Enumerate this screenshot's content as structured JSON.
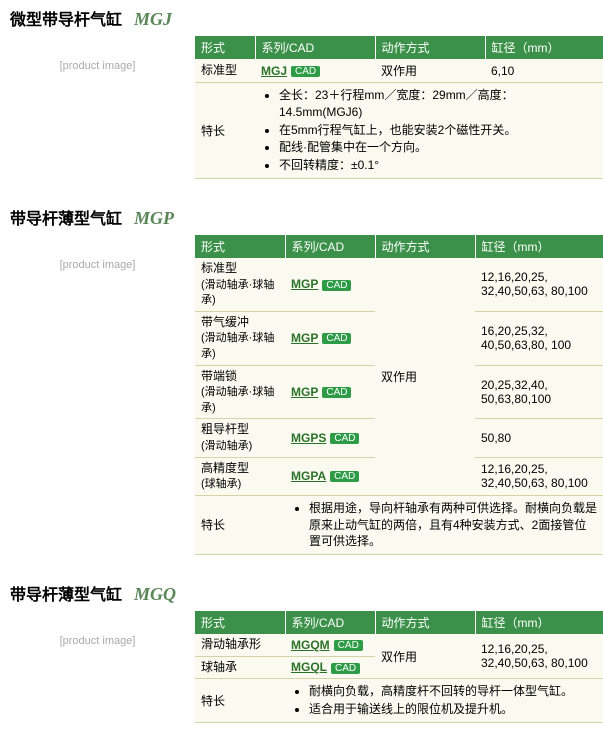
{
  "colors": {
    "header_bg": "#3c914a",
    "header_fg": "#ffffff",
    "cell_bg": "#f9f7e8",
    "title_fg": "#000000",
    "model_fg": "#5a8657",
    "link_fg": "#2a7228",
    "cad_bg": "#2e9b47",
    "border": "#d4d4a8"
  },
  "headers": {
    "style": "形式",
    "series": "系列/CAD",
    "action": "动作方式",
    "bore": "缸径（mm）"
  },
  "cad_label": "CAD",
  "features_label": "特长",
  "sections": [
    {
      "title": "微型带导杆气缸",
      "model": "MGJ",
      "col_widths": [
        "60px",
        "120px",
        "110px",
        ""
      ],
      "rows": [
        {
          "style": "标准型",
          "series": "MGJ",
          "action": "双作用",
          "bore": "6,10"
        }
      ],
      "features": [
        "全长：23＋行程mm／宽度：29mm／高度：14.5mm(MGJ6)",
        "在5mm行程气缸上，也能安装2个磁性开关。",
        "配线·配管集中在一个方向。",
        "不回转精度：±0.1°"
      ]
    },
    {
      "title": "带导杆薄型气缸",
      "model": "MGP",
      "col_widths": [
        "90px",
        "90px",
        "100px",
        ""
      ],
      "action_shared": "双作用",
      "rows": [
        {
          "style": "标准型",
          "style_sub": "(滑动轴承·球轴承)",
          "series": "MGP",
          "bore": "12,16,20,25, 32,40,50,63, 80,100"
        },
        {
          "style": "带气缓冲",
          "style_sub": "(滑动轴承·球轴承)",
          "series": "MGP",
          "bore": "16,20,25,32, 40,50,63,80, 100"
        },
        {
          "style": "带端锁",
          "style_sub": "(滑动轴承·球轴承)",
          "series": "MGP",
          "bore": "20,25,32,40, 50,63,80,100"
        },
        {
          "style": "粗导杆型",
          "style_sub": "(滑动轴承)",
          "series": "MGPS",
          "bore": "50,80"
        },
        {
          "style": "高精度型",
          "style_sub": "(球轴承)",
          "series": "MGPA",
          "bore": "12,16,20,25, 32,40,50,63, 80,100"
        }
      ],
      "features": [
        "根据用途，导向杆轴承有两种可供选择。耐横向负载是原来止动气缸的两倍，且有4种安装方式、2面接管位置可供选择。"
      ]
    },
    {
      "title": "带导杆薄型气缸",
      "model": "MGQ",
      "col_widths": [
        "90px",
        "90px",
        "100px",
        ""
      ],
      "action_shared": "双作用",
      "rows": [
        {
          "style": "滑动轴承形",
          "series": "MGQM",
          "bore": "12,16,20,25, 32,40,50,63, 80,100"
        },
        {
          "style": "球轴承",
          "series": "MGQL",
          "bore": ""
        }
      ],
      "bore_shared": "12,16,20,25, 32,40,50,63, 80,100",
      "features": [
        "耐横向负载，高精度杆不回转的导杆一体型气缸。",
        "适合用于输送线上的限位机及提升机。"
      ]
    }
  ]
}
